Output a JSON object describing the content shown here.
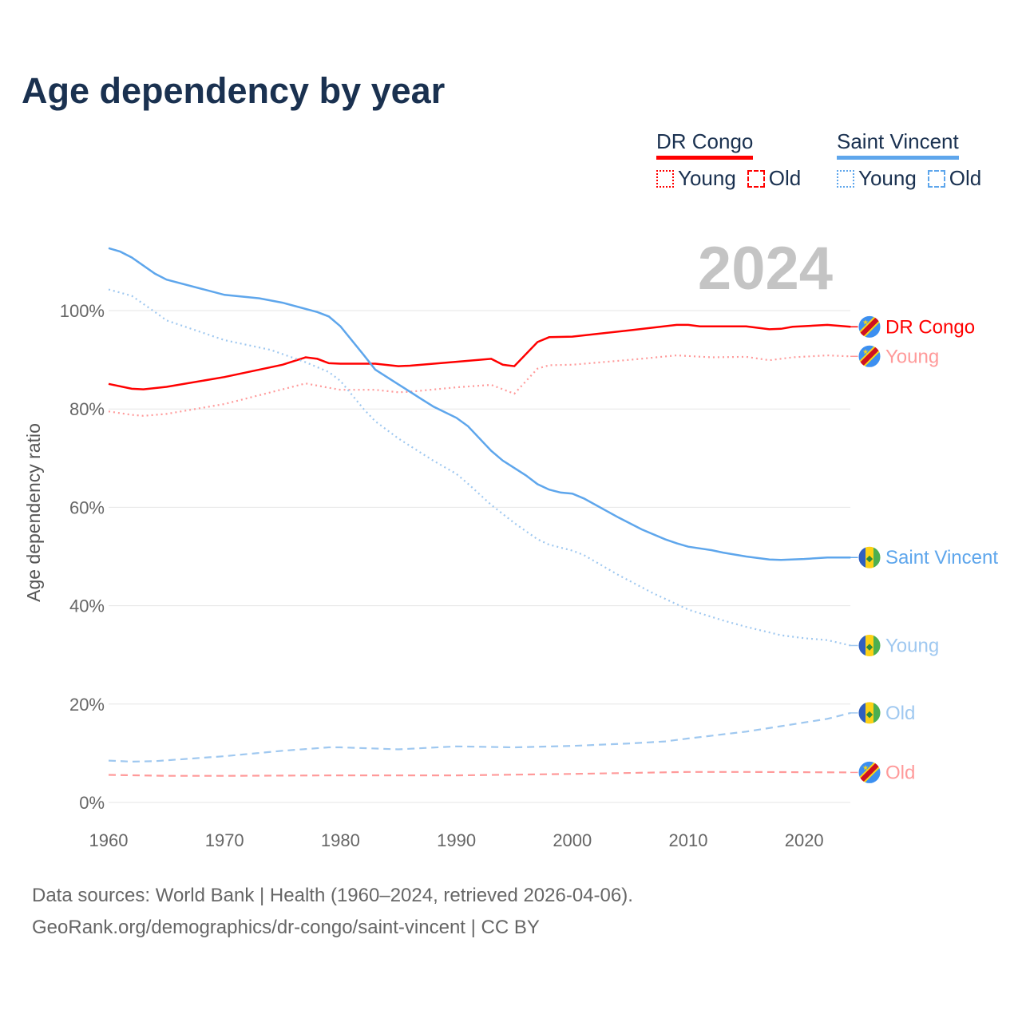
{
  "title": "Age dependency by year",
  "legend": {
    "groups": [
      {
        "name": "DR Congo",
        "color": "#ff0000",
        "young": "Young",
        "old": "Old"
      },
      {
        "name": "Saint Vincent",
        "color": "#5ea6ec",
        "young": "Young",
        "old": "Old"
      }
    ]
  },
  "year_label": "2024",
  "source_line1": "Data sources: World Bank | Health (1960–2024, retrieved 2026-04-06).",
  "source_line2": "GeoRank.org/demographics/dr-congo/saint-vincent | CC BY",
  "chart_data": {
    "type": "line",
    "title": "Age dependency by year",
    "xlabel": "",
    "ylabel": "Age dependency ratio",
    "xlim": [
      1960,
      2024
    ],
    "ylim": [
      0,
      115
    ],
    "x_ticks": [
      "1960",
      "1970",
      "1980",
      "1990",
      "2000",
      "2010",
      "2020"
    ],
    "y_ticks": [
      0,
      20,
      40,
      60,
      80,
      100
    ],
    "y_tick_labels": [
      "0%",
      "20%",
      "40%",
      "60%",
      "80%",
      "100%"
    ],
    "grid": true,
    "series": [
      {
        "name": "DR Congo",
        "end_label": "DR Congo",
        "country": "drc",
        "style": "solid",
        "color": "#ff0000",
        "x": [
          1960,
          1962,
          1963,
          1965,
          1970,
          1975,
          1977,
          1978,
          1979,
          1980,
          1983,
          1985,
          1986,
          1990,
          1993,
          1994,
          1995,
          1997,
          1998,
          2000,
          2005,
          2009,
          2010,
          2011,
          2015,
          2017,
          2018,
          2019,
          2022,
          2024
        ],
        "y": [
          85.1,
          84.1,
          84,
          84.5,
          86.5,
          89,
          90.5,
          90.2,
          89.3,
          89.2,
          89.2,
          88.7,
          88.8,
          89.6,
          90.2,
          89,
          88.7,
          93.6,
          94.6,
          94.7,
          96,
          97.1,
          97.1,
          96.8,
          96.8,
          96.2,
          96.3,
          96.7,
          97.1,
          96.7
        ]
      },
      {
        "name": "DR Congo Young",
        "end_label": "Young",
        "country": "drc",
        "style": "dotted",
        "color": "#ff9a9a",
        "x": [
          1960,
          1962,
          1963,
          1965,
          1970,
          1975,
          1977,
          1979,
          1980,
          1983,
          1985,
          1986,
          1990,
          1993,
          1995,
          1997,
          1998,
          2000,
          2005,
          2009,
          2012,
          2015,
          2017,
          2019,
          2022,
          2024
        ],
        "y": [
          79.5,
          78.8,
          78.6,
          79,
          81,
          84,
          85.2,
          84.3,
          83.9,
          83.9,
          83.4,
          83.5,
          84.4,
          84.9,
          83.1,
          88.2,
          88.9,
          89,
          90,
          90.9,
          90.5,
          90.6,
          89.9,
          90.5,
          90.9,
          90.7
        ]
      },
      {
        "name": "Saint Vincent",
        "end_label": "Saint Vincent",
        "country": "svg",
        "style": "solid",
        "color": "#5ea6ec",
        "x": [
          1960,
          1961,
          1962,
          1964,
          1965,
          1970,
          1973,
          1975,
          1978,
          1979,
          1980,
          1982,
          1983,
          1985,
          1987,
          1988,
          1990,
          1991,
          1993,
          1994,
          1996,
          1997,
          1998,
          1999,
          2000,
          2001,
          2004,
          2006,
          2008,
          2009,
          2010,
          2012,
          2013,
          2015,
          2017,
          2018,
          2020,
          2022,
          2024
        ],
        "y": [
          112.7,
          112,
          110.8,
          107.5,
          106.3,
          103.2,
          102.5,
          101.6,
          99.7,
          98.8,
          96.8,
          91,
          88,
          85,
          82,
          80.5,
          78.2,
          76.5,
          71.5,
          69.5,
          66.5,
          64.7,
          63.6,
          63,
          62.8,
          61.8,
          57.9,
          55.5,
          53.5,
          52.7,
          52,
          51.3,
          50.8,
          50,
          49.4,
          49.3,
          49.5,
          49.8,
          49.8
        ]
      },
      {
        "name": "Saint Vincent Young",
        "end_label": "Young",
        "country": "svg",
        "style": "dotted",
        "color": "#9fc8f0",
        "x": [
          1960,
          1962,
          1964,
          1965,
          1970,
          1974,
          1977,
          1979,
          1980,
          1982,
          1983,
          1985,
          1988,
          1990,
          1991,
          1993,
          1995,
          1997,
          1998,
          2000,
          2001,
          2004,
          2007,
          2010,
          2013,
          2015,
          2018,
          2020,
          2022,
          2024
        ],
        "y": [
          104.3,
          103,
          99.7,
          98,
          94,
          92,
          89.5,
          87.5,
          85.7,
          80,
          77.5,
          74,
          69.5,
          66.8,
          64.8,
          60.5,
          56.8,
          53.5,
          52.4,
          51.2,
          50.3,
          46.2,
          42.5,
          39.2,
          37,
          35.7,
          34,
          33.4,
          33,
          31.9
        ]
      },
      {
        "name": "Saint Vincent Old",
        "end_label": "Old",
        "country": "svg",
        "style": "dashed",
        "color": "#9fc8f0",
        "x": [
          1960,
          1962,
          1964,
          1970,
          1975,
          1979,
          1980,
          1985,
          1990,
          1995,
          2000,
          2005,
          2008,
          2010,
          2015,
          2018,
          2022,
          2024
        ],
        "y": [
          8.5,
          8.3,
          8.4,
          9.4,
          10.5,
          11.2,
          11.2,
          10.8,
          11.4,
          11.2,
          11.5,
          12,
          12.4,
          13,
          14.4,
          15.5,
          17,
          18.2
        ]
      },
      {
        "name": "DR Congo Old",
        "end_label": "Old",
        "country": "drc",
        "style": "dashed",
        "color": "#ff9a9a",
        "x": [
          1960,
          1965,
          1970,
          1980,
          1990,
          2000,
          2010,
          2015,
          2024
        ],
        "y": [
          5.6,
          5.4,
          5.4,
          5.5,
          5.5,
          5.8,
          6.2,
          6.2,
          6.1
        ]
      }
    ]
  }
}
